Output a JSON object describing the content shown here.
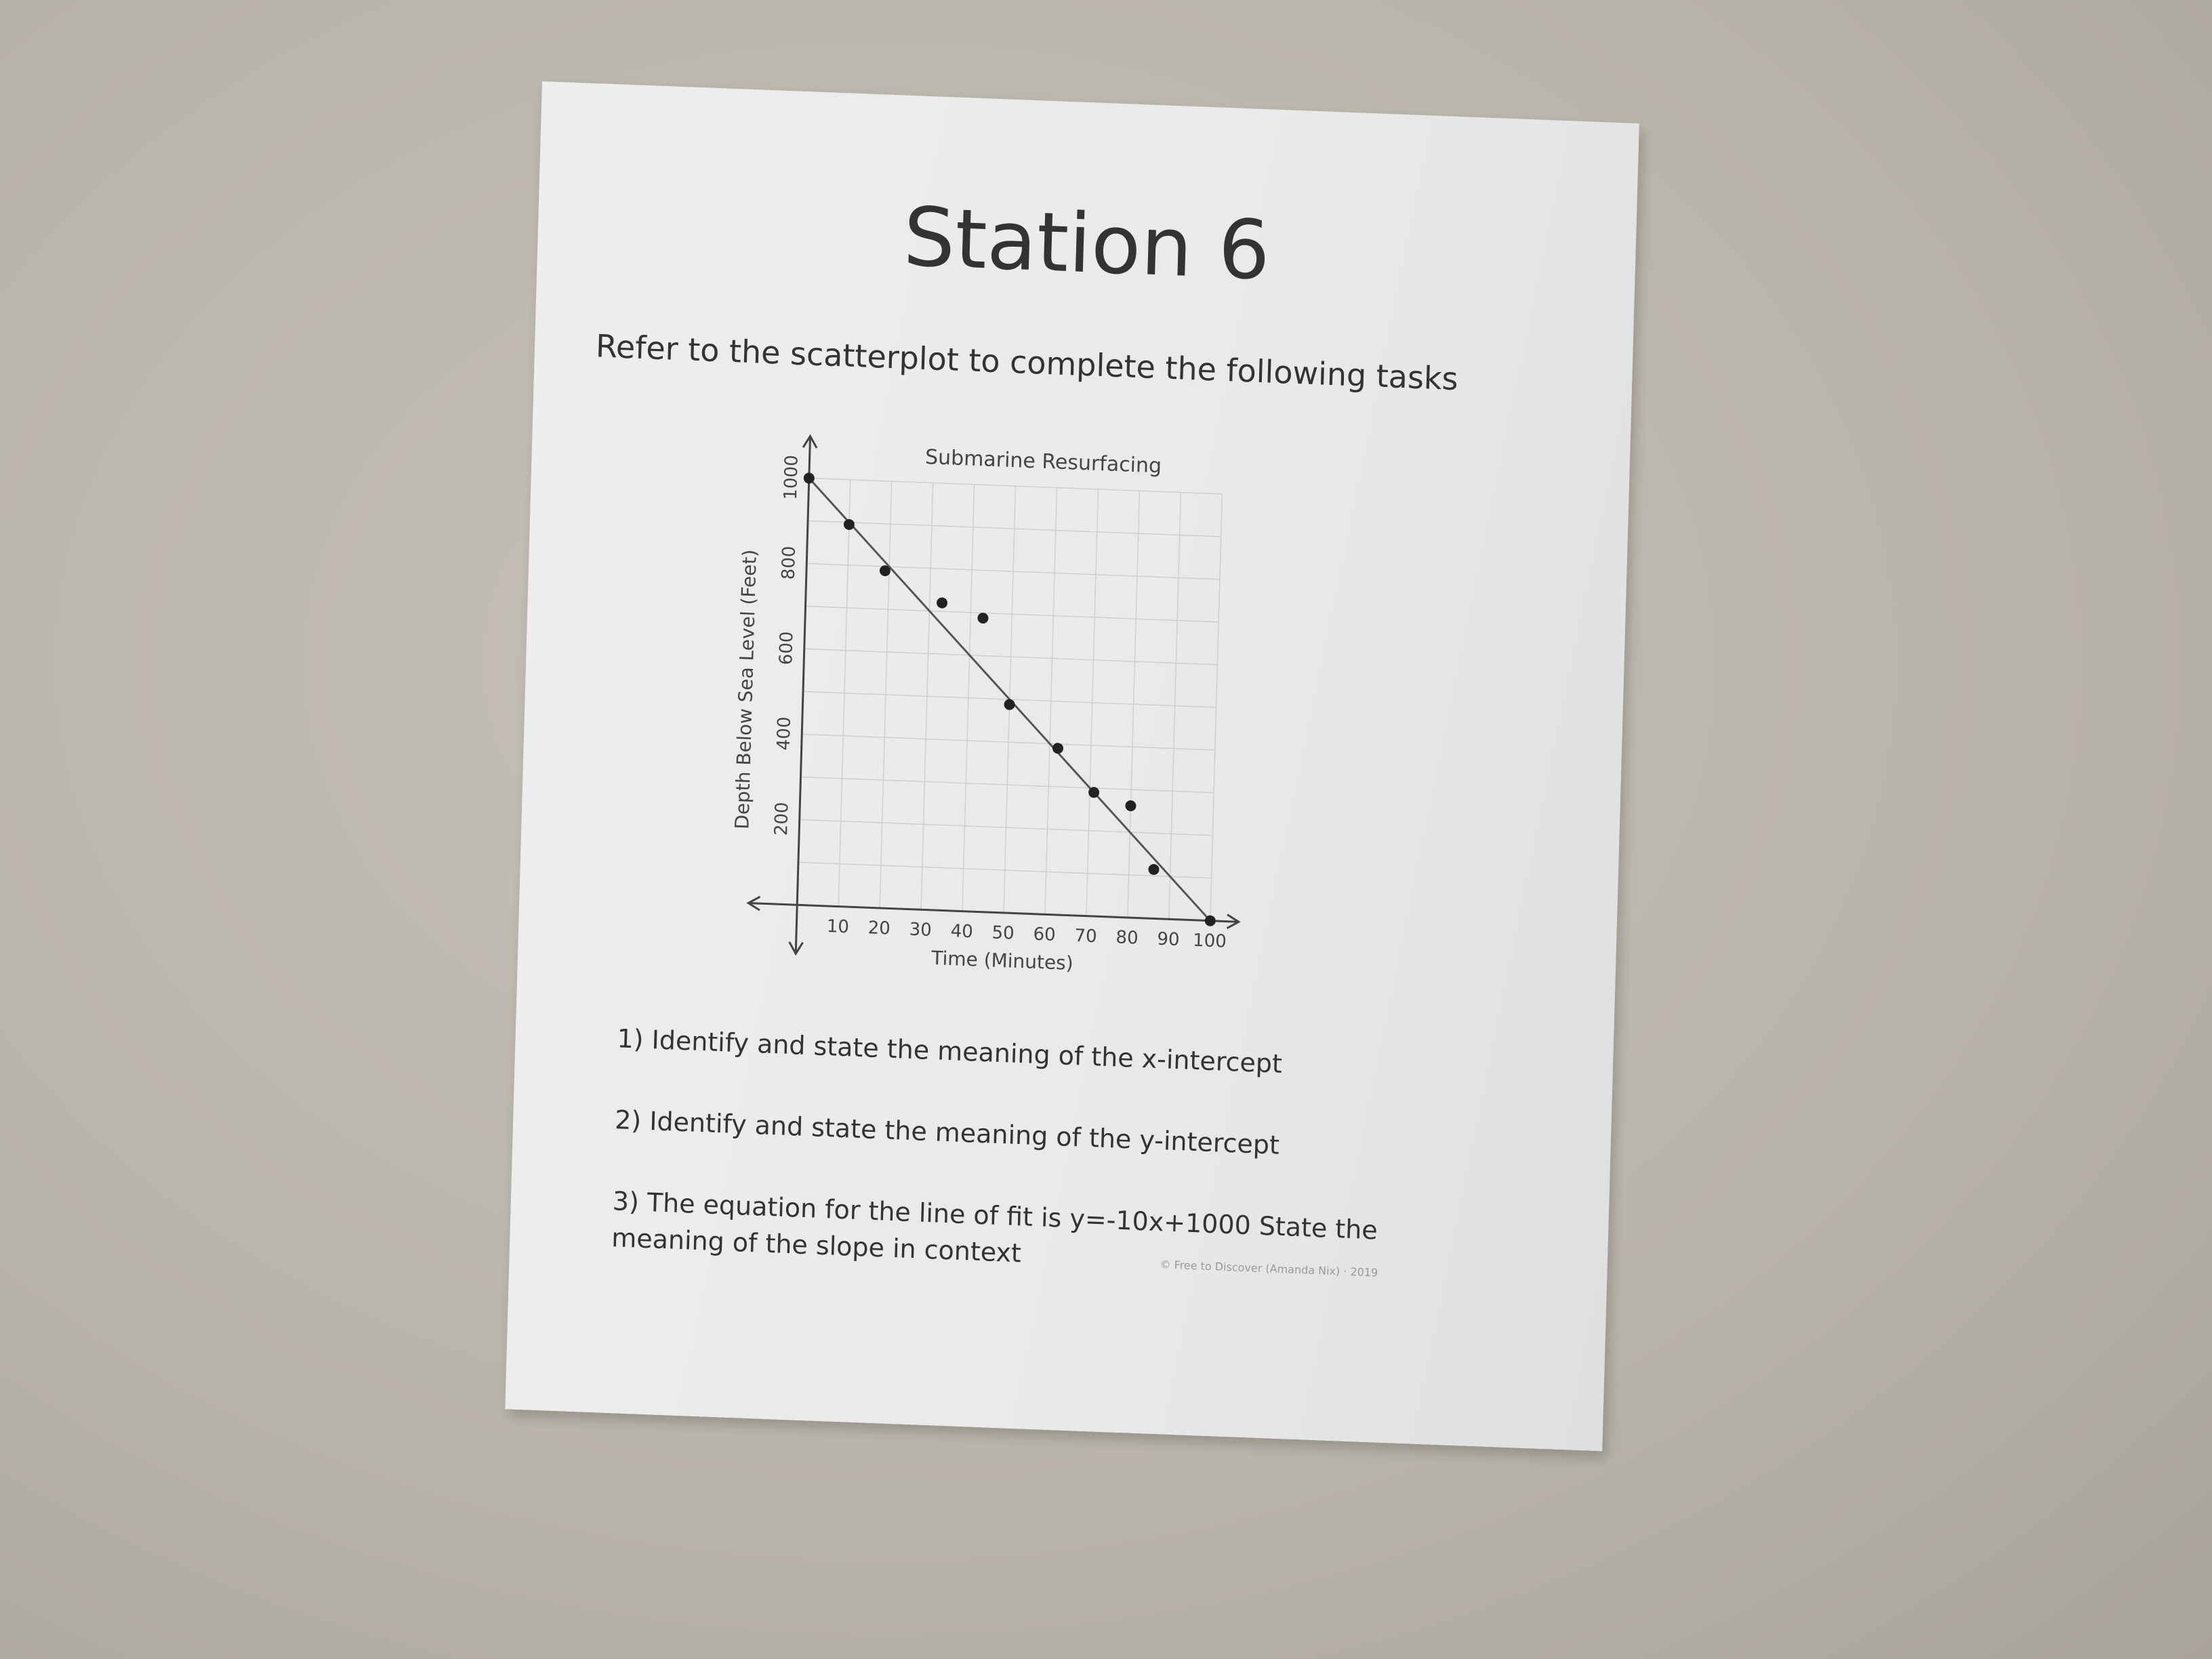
{
  "title": "Station 6",
  "instructions": "Refer to the scatterplot to complete the following tasks",
  "questions": [
    "1) Identify and state the meaning of the x-intercept",
    "2) Identify and state the meaning of the y-intercept",
    "3) The equation for the line of fit is y=-10x+1000  State the meaning of the slope in context"
  ],
  "credit": "© Free to Discover (Amanda Nix) · 2019",
  "chart_data": {
    "type": "scatter",
    "title": "Submarine Resurfacing",
    "xlabel": "Time (Minutes)",
    "ylabel": "Depth Below Sea Level (Feet)",
    "xlim": [
      0,
      100
    ],
    "ylim": [
      0,
      1000
    ],
    "xticks": [
      "10",
      "20",
      "30",
      "40",
      "50",
      "60",
      "70",
      "80",
      "90",
      "100"
    ],
    "yticks": [
      "200",
      "400",
      "600",
      "800",
      "1000"
    ],
    "grid": true,
    "points": [
      {
        "x": 0,
        "y": 1000
      },
      {
        "x": 10,
        "y": 895
      },
      {
        "x": 19,
        "y": 790
      },
      {
        "x": 33,
        "y": 720
      },
      {
        "x": 43,
        "y": 688
      },
      {
        "x": 50,
        "y": 488
      },
      {
        "x": 62,
        "y": 390
      },
      {
        "x": 71,
        "y": 290
      },
      {
        "x": 80,
        "y": 262
      },
      {
        "x": 86,
        "y": 115
      },
      {
        "x": 100,
        "y": 0
      }
    ],
    "line_of_fit": {
      "slope": -10,
      "intercept": 1000
    },
    "colors": {
      "points": "#222222",
      "line": "#555555",
      "grid": "#cfcfcf"
    }
  }
}
